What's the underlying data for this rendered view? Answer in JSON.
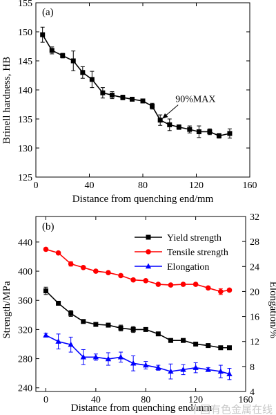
{
  "watermark": "中国有色金属在线",
  "chart_data": [
    {
      "type": "line",
      "panel_label": "(a)",
      "xlabel": "Distance from quenching end/mm",
      "ylabel": "Brinell hardness, HB",
      "xlim": [
        0,
        160
      ],
      "ylim": [
        125,
        155
      ],
      "xticks": [
        0,
        40,
        80,
        120,
        160
      ],
      "yticks": [
        125,
        130,
        135,
        140,
        145,
        150,
        155
      ],
      "series": [
        {
          "color": "#000000",
          "marker": "square",
          "x": [
            5,
            12,
            20,
            28,
            35,
            42,
            50,
            57,
            65,
            72,
            80,
            87,
            93,
            100,
            107,
            115,
            122,
            130,
            137,
            145
          ],
          "y": [
            149.5,
            146.8,
            145.9,
            145.0,
            143.0,
            141.8,
            139.5,
            139.1,
            138.7,
            138.4,
            138.1,
            137.2,
            134.8,
            134.0,
            133.6,
            133.2,
            132.8,
            132.8,
            132.1,
            132.5
          ],
          "err": [
            1.3,
            0.6,
            0.4,
            1.7,
            1.0,
            1.4,
            0.9,
            0.6,
            0.4,
            0.3,
            0.3,
            0.5,
            0.9,
            1.0,
            0.4,
            0.6,
            1.0,
            0.5,
            0.4,
            0.8
          ]
        }
      ],
      "annotation": {
        "text": "90%MAX",
        "x": 93,
        "y": 134.8
      }
    },
    {
      "type": "line",
      "panel_label": "(b)",
      "xlabel": "Distance from quenching end/mm",
      "ylabel": "Strength/MPa",
      "ylabel_right": "Elongation/%",
      "xlim": [
        -8,
        160
      ],
      "ylim": [
        235,
        475
      ],
      "ylim_right": [
        4,
        32
      ],
      "xticks": [
        0,
        40,
        80,
        120,
        160
      ],
      "yticks": [
        240,
        280,
        320,
        360,
        400,
        440
      ],
      "yticks_right": [
        4,
        8,
        12,
        16,
        20,
        24,
        28,
        32
      ],
      "legend_position": "top-right",
      "series": [
        {
          "name": "Yield strength",
          "axis": "left",
          "color": "#000000",
          "marker": "square",
          "x": [
            0,
            10,
            20,
            30,
            40,
            50,
            60,
            70,
            80,
            90,
            100,
            110,
            120,
            130,
            140,
            147
          ],
          "y": [
            373,
            356,
            342,
            331,
            327,
            326,
            322,
            320,
            320,
            314,
            305,
            305,
            300,
            298,
            295,
            295
          ],
          "err": [
            5,
            2,
            4,
            2,
            2,
            2,
            4,
            4,
            2,
            2,
            2,
            2,
            2,
            2,
            2,
            2
          ]
        },
        {
          "name": "Tensile strength",
          "axis": "left",
          "color": "#ff0000",
          "marker": "circle",
          "x": [
            0,
            10,
            20,
            30,
            40,
            50,
            60,
            70,
            80,
            90,
            100,
            110,
            120,
            130,
            140,
            147
          ],
          "y": [
            430,
            425,
            410,
            405,
            400,
            398,
            394,
            388,
            387,
            382,
            381,
            382,
            382,
            377,
            372,
            374
          ],
          "err": [
            2,
            2,
            3,
            2,
            2,
            2,
            2,
            2,
            2,
            2,
            2,
            2,
            2,
            2,
            4,
            2
          ]
        },
        {
          "name": "Elongation",
          "axis": "right",
          "color": "#0000ff",
          "marker": "triangle",
          "x": [
            0,
            10,
            20,
            30,
            40,
            50,
            60,
            70,
            80,
            90,
            100,
            110,
            120,
            130,
            140,
            147
          ],
          "y": [
            13.0,
            12.0,
            11.5,
            9.5,
            9.5,
            9.2,
            9.5,
            8.5,
            8.2,
            7.8,
            7.2,
            7.5,
            7.8,
            7.5,
            7.2,
            6.8
          ],
          "err": [
            0.3,
            1.2,
            1.2,
            1.2,
            0.5,
            1.0,
            0.8,
            1.2,
            0.6,
            0.4,
            1.2,
            0.8,
            0.8,
            0.3,
            1.0,
            0.9
          ]
        }
      ]
    }
  ]
}
